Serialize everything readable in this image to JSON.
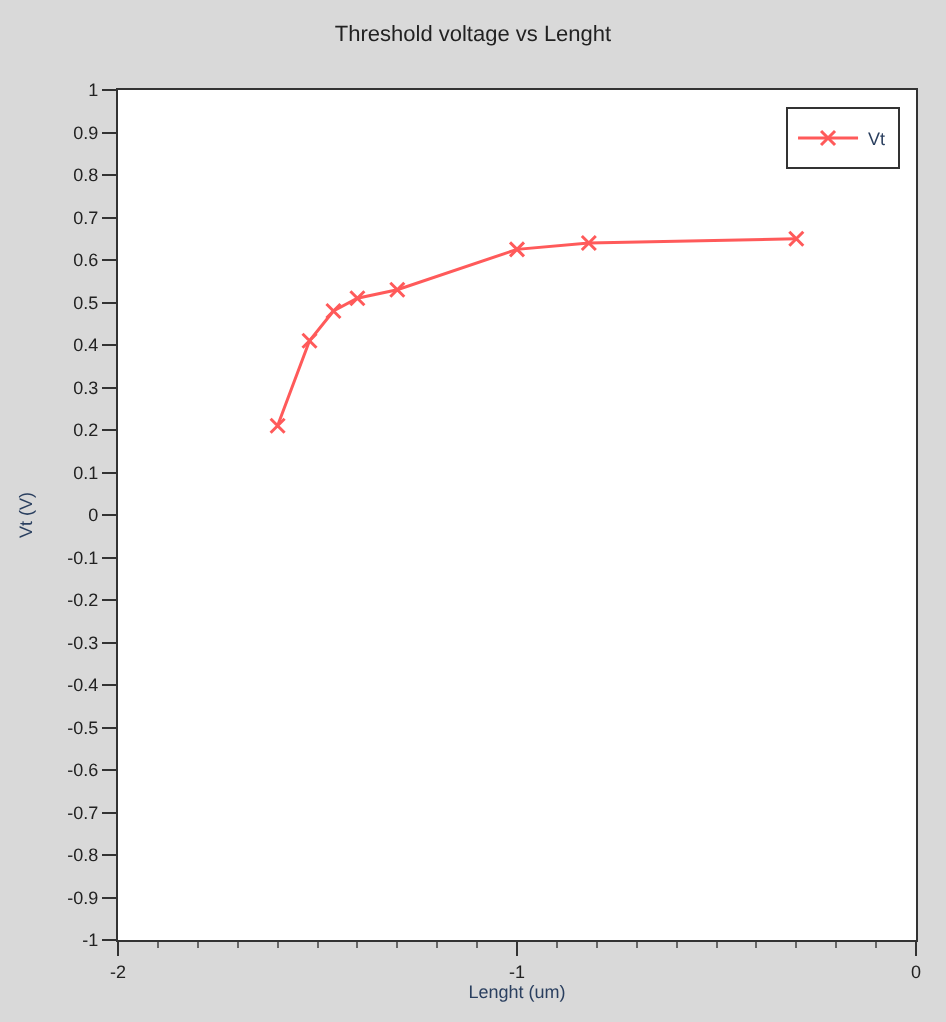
{
  "chart_data": {
    "type": "line",
    "title": "Threshold voltage vs Lenght",
    "xlabel": "Lenght (um)",
    "ylabel": "Vt (V)",
    "xlim": [
      -2,
      0
    ],
    "xticks": [
      -2,
      -1,
      0
    ],
    "ylim": [
      -1,
      1
    ],
    "yticks": [
      -1,
      -0.9,
      -0.8,
      -0.7,
      -0.6,
      -0.5,
      -0.4,
      -0.3,
      -0.2,
      -0.1,
      0,
      0.1,
      0.2,
      0.3,
      0.4,
      0.5,
      0.6,
      0.7,
      0.8,
      0.9,
      1
    ],
    "series": [
      {
        "name": "Vt",
        "color": "#ff5a5a",
        "x": [
          -1.6,
          -1.52,
          -1.46,
          -1.4,
          -1.3,
          -1.0,
          -0.82,
          -0.3
        ],
        "values": [
          0.21,
          0.41,
          0.48,
          0.51,
          0.53,
          0.625,
          0.64,
          0.65
        ]
      }
    ],
    "marker": "cross",
    "line_style": "solid",
    "legend": "top right"
  }
}
